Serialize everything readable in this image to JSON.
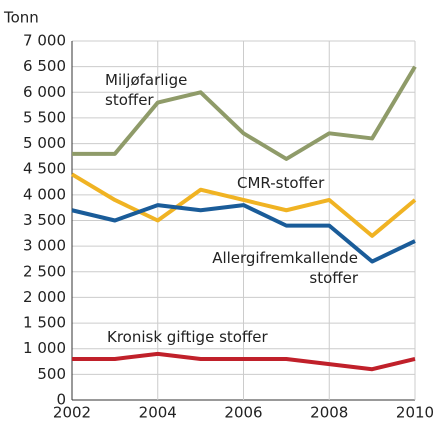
{
  "chart_data": {
    "type": "line",
    "y_label": "Tonn",
    "x": [
      2002,
      2003,
      2004,
      2005,
      2006,
      2007,
      2008,
      2009,
      2010
    ],
    "xlim": [
      2002,
      2010
    ],
    "xticks": [
      2002,
      2004,
      2006,
      2008,
      2010
    ],
    "ylim": [
      0,
      7000
    ],
    "yticks": [
      0,
      500,
      {
        "value": 1000,
        "label": "1 000"
      },
      {
        "value": 1500,
        "label": "1 500"
      },
      {
        "value": 2000,
        "label": "2 000"
      },
      {
        "value": 2500,
        "label": "2 500"
      },
      {
        "value": 3000,
        "label": "3 000"
      },
      {
        "value": 3500,
        "label": "3 500"
      },
      {
        "value": 4000,
        "label": "4 000"
      },
      {
        "value": 4500,
        "label": "4 500"
      },
      {
        "value": 5000,
        "label": "5 000"
      },
      {
        "value": 5500,
        "label": "5 500"
      },
      {
        "value": 6000,
        "label": "6 000"
      },
      {
        "value": 6500,
        "label": "6 500"
      },
      {
        "value": 7000,
        "label": "7 000"
      }
    ],
    "grid": true,
    "series": [
      {
        "name": "Miljøfarlige stoffer",
        "color": "#8f9b69",
        "values": [
          4800,
          4800,
          5800,
          6000,
          5200,
          4700,
          5200,
          5100,
          6500
        ]
      },
      {
        "name": "CMR-stoffer",
        "color": "#f0b323",
        "values": [
          4400,
          3900,
          3500,
          4100,
          3900,
          3700,
          3900,
          3200,
          3900
        ]
      },
      {
        "name": "Allergifremkallende stoffer",
        "color": "#1a5c99",
        "values": [
          3700,
          3500,
          3800,
          3700,
          3800,
          3400,
          3400,
          2700,
          3100
        ]
      },
      {
        "name": "Kronisk giftige stoffer",
        "color": "#c0202a",
        "values": [
          800,
          800,
          900,
          800,
          800,
          800,
          700,
          600,
          800
        ]
      }
    ]
  }
}
